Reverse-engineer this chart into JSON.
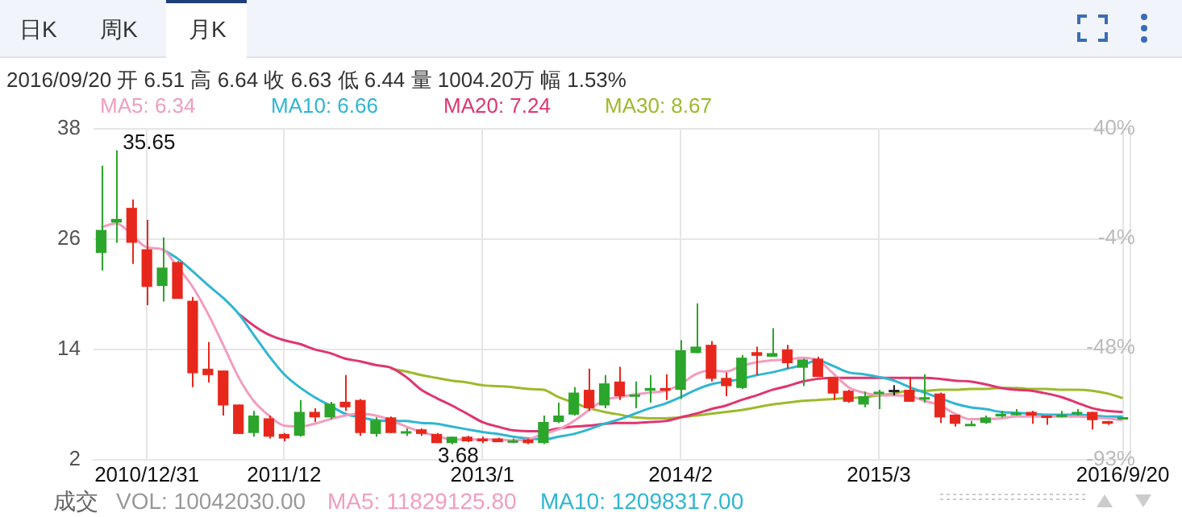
{
  "chart_data": {
    "type": "candlestick",
    "categories": [
      null,
      null,
      null,
      "2010/12/31",
      null,
      null,
      null,
      null,
      null,
      null,
      null,
      null,
      "2011/12",
      null,
      null,
      null,
      null,
      null,
      null,
      null,
      null,
      null,
      null,
      null,
      null,
      "2013/1",
      null,
      null,
      null,
      null,
      null,
      null,
      null,
      null,
      null,
      null,
      null,
      null,
      "2014/2",
      null,
      null,
      null,
      null,
      null,
      null,
      null,
      null,
      null,
      null,
      null,
      null,
      "2015/3",
      null,
      null,
      null,
      null,
      null,
      null,
      null,
      null,
      null,
      null,
      null,
      null,
      null,
      null,
      null,
      "2016/9/20"
    ],
    "ohlc": [
      [
        24.5,
        34.0,
        22.6,
        27.0
      ],
      [
        27.8,
        35.65,
        25.6,
        28.2
      ],
      [
        29.4,
        30.3,
        23.3,
        25.6
      ],
      [
        24.9,
        28.1,
        18.8,
        20.8
      ],
      [
        20.9,
        26.2,
        19.2,
        22.9
      ],
      [
        23.5,
        23.6,
        19.5,
        19.5
      ],
      [
        19.3,
        19.7,
        9.9,
        11.4
      ],
      [
        11.9,
        14.8,
        10.4,
        11.2
      ],
      [
        11.7,
        11.7,
        6.8,
        7.9
      ],
      [
        8.0,
        8.0,
        4.8,
        4.8
      ],
      [
        4.9,
        7.3,
        4.5,
        6.8
      ],
      [
        6.5,
        6.8,
        4.3,
        4.5
      ],
      [
        4.8,
        4.9,
        4.0,
        4.3
      ],
      [
        4.6,
        8.5,
        4.5,
        7.2
      ],
      [
        7.2,
        7.6,
        6.1,
        6.6
      ],
      [
        6.6,
        8.3,
        6.4,
        8.1
      ],
      [
        8.3,
        11.2,
        7.3,
        7.7
      ],
      [
        8.5,
        8.6,
        4.6,
        4.9
      ],
      [
        4.8,
        6.6,
        4.5,
        6.3
      ],
      [
        6.6,
        6.7,
        4.9,
        4.9
      ],
      [
        5.0,
        5.4,
        4.6,
        5.1
      ],
      [
        5.3,
        5.4,
        4.6,
        4.8
      ],
      [
        4.8,
        4.9,
        3.8,
        3.8
      ],
      [
        3.8,
        4.5,
        3.68,
        4.5
      ],
      [
        4.5,
        4.6,
        3.9,
        4.0
      ],
      [
        4.3,
        4.5,
        3.8,
        4.0
      ],
      [
        4.3,
        4.4,
        3.9,
        3.9
      ],
      [
        4.0,
        4.3,
        3.8,
        4.1
      ],
      [
        4.2,
        4.3,
        3.7,
        3.8
      ],
      [
        3.8,
        6.8,
        3.7,
        6.1
      ],
      [
        6.1,
        8.2,
        6.0,
        6.8
      ],
      [
        6.9,
        9.9,
        6.8,
        9.3
      ],
      [
        9.6,
        11.9,
        7.3,
        7.6
      ],
      [
        7.9,
        11.2,
        7.6,
        10.3
      ],
      [
        10.5,
        12.1,
        8.5,
        8.9
      ],
      [
        8.9,
        10.5,
        7.6,
        9.1
      ],
      [
        9.5,
        11.2,
        8.2,
        9.8
      ],
      [
        9.8,
        11.3,
        8.5,
        9.5
      ],
      [
        9.6,
        15.0,
        8.6,
        13.9
      ],
      [
        13.6,
        19.0,
        13.6,
        14.3
      ],
      [
        14.5,
        14.9,
        10.5,
        10.8
      ],
      [
        10.9,
        11.5,
        8.9,
        10.0
      ],
      [
        9.8,
        13.4,
        9.7,
        13.1
      ],
      [
        13.7,
        14.3,
        11.2,
        13.3
      ],
      [
        13.2,
        16.3,
        13.2,
        13.6
      ],
      [
        14.0,
        14.5,
        11.9,
        12.5
      ],
      [
        12.0,
        13.0,
        10.0,
        12.9
      ],
      [
        13.0,
        13.2,
        11.0,
        11.0
      ],
      [
        11.0,
        11.0,
        8.5,
        9.2
      ],
      [
        9.5,
        9.6,
        8.2,
        8.3
      ],
      [
        8.0,
        9.4,
        7.7,
        8.9
      ],
      [
        9.3,
        9.6,
        7.5,
        9.4
      ],
      [
        9.6,
        10.1,
        9.0,
        9.6
      ],
      [
        9.6,
        11.0,
        8.3,
        8.3
      ],
      [
        8.6,
        11.3,
        8.2,
        8.8
      ],
      [
        9.2,
        9.3,
        6.0,
        6.6
      ],
      [
        6.9,
        6.9,
        5.6,
        5.9
      ],
      [
        5.8,
        6.2,
        5.7,
        5.9
      ],
      [
        6.0,
        6.8,
        5.9,
        6.6
      ],
      [
        6.7,
        7.3,
        6.6,
        7.0
      ],
      [
        7.0,
        7.5,
        6.8,
        7.1
      ],
      [
        7.2,
        7.3,
        5.9,
        6.8
      ],
      [
        6.8,
        6.8,
        5.8,
        6.7
      ],
      [
        6.8,
        7.3,
        6.6,
        6.9
      ],
      [
        7.0,
        7.5,
        6.8,
        7.2
      ],
      [
        7.2,
        7.2,
        5.3,
        6.3
      ],
      [
        6.2,
        6.2,
        5.8,
        5.9
      ],
      [
        6.51,
        6.64,
        6.44,
        6.63
      ]
    ],
    "colors": [
      "#2ba52b",
      "#2ba52b",
      "#e8271c",
      "#e8271c",
      "#2ba52b",
      "#e8271c",
      "#e8271c",
      "#e8271c",
      "#e8271c",
      "#e8271c",
      "#2ba52b",
      "#e8271c",
      "#e8271c",
      "#2ba52b",
      "#e8271c",
      "#2ba52b",
      "#e8271c",
      "#e8271c",
      "#2ba52b",
      "#e8271c",
      "#2ba52b",
      "#e8271c",
      "#e8271c",
      "#2ba52b",
      "#e8271c",
      "#e8271c",
      "#e8271c",
      "#2ba52b",
      "#e8271c",
      "#2ba52b",
      "#2ba52b",
      "#2ba52b",
      "#e8271c",
      "#2ba52b",
      "#e8271c",
      "#2ba52b",
      "#2ba52b",
      "#e8271c",
      "#2ba52b",
      "#2ba52b",
      "#e8271c",
      "#e8271c",
      "#2ba52b",
      "#e8271c",
      "#2ba52b",
      "#e8271c",
      "#2ba52b",
      "#e8271c",
      "#e8271c",
      "#e8271c",
      "#2ba52b",
      "#2ba52b",
      "#222222",
      "#e8271c",
      "#2ba52b",
      "#e8271c",
      "#e8271c",
      "#2ba52b",
      "#2ba52b",
      "#2ba52b",
      "#2ba52b",
      "#e8271c",
      "#e8271c",
      "#2ba52b",
      "#2ba52b",
      "#e8271c",
      "#e8271c",
      "#2ba52b"
    ],
    "series": [
      {
        "name": "MA5: 6.34",
        "type": "line",
        "color": "#f29dbf",
        "values": [
          27.3,
          27.7,
          26.5,
          25.1,
          24.9,
          23.0,
          20.8,
          17.9,
          14.5,
          11.0,
          8.4,
          6.8,
          5.7,
          5.6,
          5.9,
          6.4,
          6.8,
          7.0,
          6.8,
          6.3,
          5.6,
          5.0,
          4.6,
          4.2,
          4.2,
          4.2,
          4.2,
          4.1,
          4.2,
          4.8,
          5.3,
          6.2,
          7.4,
          8.5,
          8.8,
          9.1,
          9.3,
          9.5,
          10.2,
          11.3,
          11.7,
          11.6,
          12.2,
          12.6,
          12.8,
          12.9,
          13.1,
          12.8,
          11.4,
          9.9,
          9.3,
          9.0,
          9.0,
          8.9,
          8.4,
          7.9,
          7.0,
          6.4,
          6.4,
          6.5,
          6.7,
          6.7,
          6.7,
          6.7,
          6.7,
          6.6,
          6.5,
          6.3
        ]
      },
      {
        "name": "MA10: 6.66",
        "type": "line",
        "color": "#2fb6d2",
        "values": [
          null,
          null,
          null,
          null,
          24.9,
          23.9,
          22.5,
          21.0,
          19.6,
          17.9,
          15.6,
          13.3,
          11.3,
          9.9,
          8.8,
          7.9,
          7.0,
          6.6,
          6.3,
          6.2,
          6.2,
          6.0,
          5.9,
          5.6,
          5.3,
          5.0,
          4.8,
          4.5,
          4.3,
          4.2,
          4.5,
          4.8,
          5.3,
          5.9,
          6.4,
          7.0,
          7.6,
          8.1,
          8.8,
          9.6,
          10.2,
          10.5,
          10.8,
          11.2,
          11.5,
          11.9,
          12.3,
          12.8,
          12.2,
          11.5,
          11.3,
          11.0,
          10.6,
          9.9,
          9.3,
          8.7,
          8.1,
          7.7,
          7.5,
          7.2,
          7.1,
          7.0,
          6.9,
          6.9,
          6.9,
          6.8,
          6.7,
          6.7
        ]
      },
      {
        "name": "MA20: 7.24",
        "type": "line",
        "color": "#e0356f",
        "values": [
          null,
          null,
          null,
          null,
          null,
          null,
          null,
          null,
          null,
          17.9,
          16.6,
          15.6,
          15.0,
          14.6,
          14.0,
          13.6,
          13.0,
          12.7,
          12.3,
          12.0,
          11.0,
          9.6,
          8.7,
          7.9,
          7.0,
          6.1,
          5.6,
          5.2,
          5.1,
          5.1,
          5.4,
          5.6,
          5.7,
          5.9,
          6.0,
          6.0,
          6.1,
          6.2,
          6.6,
          7.0,
          7.5,
          7.9,
          8.5,
          9.0,
          9.6,
          10.0,
          10.5,
          10.8,
          10.9,
          10.9,
          10.9,
          10.9,
          10.9,
          10.9,
          10.9,
          10.8,
          10.6,
          10.5,
          10.2,
          9.8,
          9.6,
          9.5,
          9.2,
          8.8,
          8.2,
          7.6,
          7.3,
          7.2
        ]
      },
      {
        "name": "MA30: 8.67",
        "type": "line",
        "color": "#9cba2c",
        "values": [
          null,
          null,
          null,
          null,
          null,
          null,
          null,
          null,
          null,
          null,
          null,
          null,
          null,
          null,
          null,
          null,
          null,
          null,
          null,
          11.9,
          11.6,
          11.2,
          10.9,
          10.6,
          10.4,
          10.1,
          10.0,
          9.9,
          9.7,
          9.6,
          8.8,
          8.2,
          7.6,
          7.2,
          6.9,
          6.6,
          6.5,
          6.5,
          6.6,
          6.8,
          7.0,
          7.2,
          7.4,
          7.7,
          8.0,
          8.2,
          8.4,
          8.5,
          8.6,
          8.7,
          8.8,
          9.0,
          9.2,
          9.5,
          9.5,
          9.6,
          9.6,
          9.7,
          9.7,
          9.8,
          9.8,
          9.7,
          9.7,
          9.6,
          9.6,
          9.5,
          9.2,
          8.7
        ]
      }
    ],
    "ylim": [
      2,
      38
    ],
    "yticks": [
      2,
      14,
      26,
      38
    ],
    "y2lim": [
      -93,
      40
    ],
    "y2ticks": [
      {
        "value": 40,
        "label": "40%"
      },
      {
        "value": -4,
        "label": "-4%"
      },
      {
        "value": -48,
        "label": "-48%"
      },
      {
        "value": -93,
        "label": "-93%"
      }
    ],
    "grid": true,
    "legend": "top",
    "annotations": [
      "日K",
      "周K",
      "月K",
      "2016/09/20 开 6.51 高 6.64 收 6.63 低 6.44 量 1004.20万 幅 1.53%",
      "成交",
      "VOL: 10042030.00",
      "MA5: 11829125.80",
      "MA10: 12098317.00",
      "35.65",
      "3.68"
    ]
  }
}
